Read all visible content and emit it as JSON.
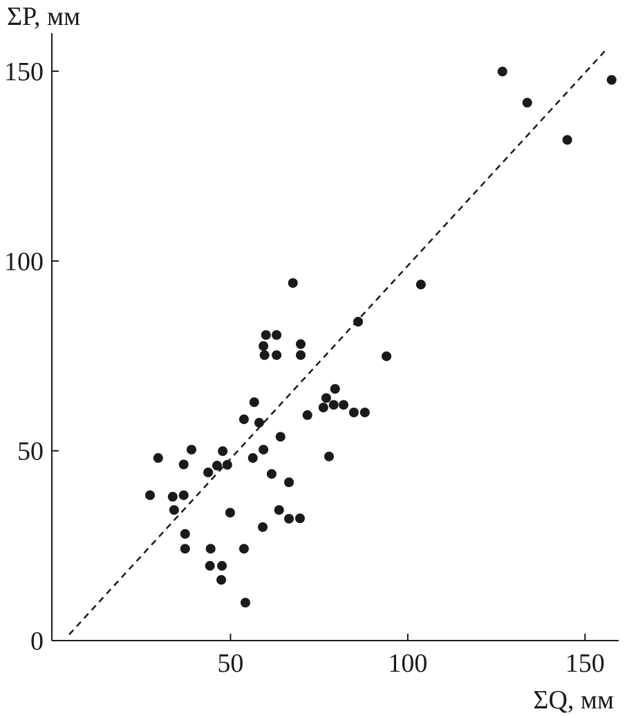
{
  "chart_data": {
    "type": "scatter",
    "y_label": "ΣP, мм",
    "x_label": "ΣQ, мм",
    "xlim": [
      0,
      159.5
    ],
    "ylim": [
      0,
      160
    ],
    "xticks": [
      50,
      100,
      150
    ],
    "yticks": [
      0,
      50,
      100,
      150
    ],
    "color": "#1a1a1a",
    "fit_line": {
      "x": [
        4.5,
        155.8
      ],
      "y": [
        1.6,
        155.5
      ]
    },
    "x": [
      27.3,
      29.6,
      33.7,
      34.1,
      36.8,
      36.8,
      37.2,
      37.2,
      39.0,
      43.7,
      44.4,
      44.2,
      46.2,
      47.6,
      47.4,
      47.8,
      49.1,
      49.9,
      53.8,
      53.8,
      54.2,
      56.3,
      56.7,
      58.1,
      59.3,
      59.1,
      59.3,
      59.6,
      60.0,
      61.6,
      63.0,
      63.0,
      63.7,
      64.1,
      66.5,
      66.5,
      67.6,
      69.6,
      69.8,
      69.8,
      71.7,
      76.2,
      77.0,
      77.8,
      79.5,
      79.1,
      81.9,
      84.8,
      87.9,
      86.0,
      94.0,
      103.7,
      126.7,
      133.7,
      145.0,
      157.5
    ],
    "y": [
      38.3,
      48.1,
      37.9,
      34.4,
      38.3,
      46.4,
      28.1,
      24.2,
      50.3,
      44.3,
      24.2,
      19.7,
      46.1,
      19.7,
      16.0,
      49.9,
      46.3,
      33.7,
      24.2,
      58.3,
      10.0,
      48.1,
      62.8,
      57.4,
      50.3,
      29.9,
      77.6,
      75.2,
      80.5,
      43.9,
      80.5,
      75.2,
      34.4,
      53.7,
      41.7,
      32.1,
      94.2,
      32.2,
      78.1,
      75.2,
      59.4,
      61.4,
      63.9,
      48.5,
      66.3,
      62.1,
      62.1,
      60.1,
      60.1,
      84.0,
      74.9,
      93.8,
      149.9,
      141.7,
      131.9,
      147.7
    ]
  }
}
